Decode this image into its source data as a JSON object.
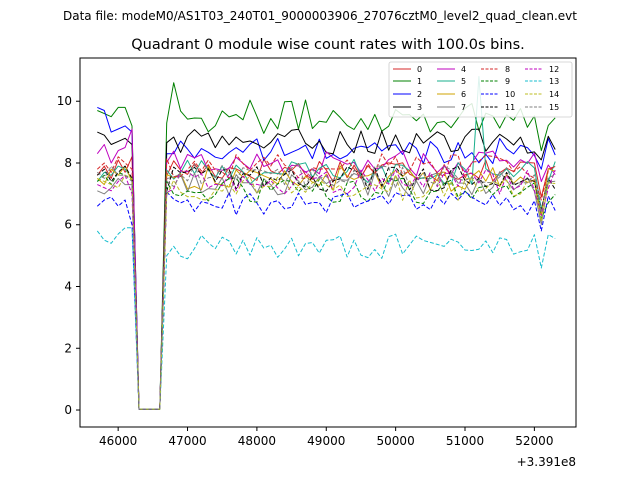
{
  "chart_data": {
    "type": "line",
    "suptitle": "Data file: modeM0/AS1T03_240T01_9000003906_27076cztM0_level2_quad_clean.evt",
    "title": "Quadrant 0 module wise count rates with 100.0s bins.",
    "xlabel": "",
    "ylabel": "",
    "x_offset_label": "+3.391e8",
    "xlim": [
      45450,
      52600
    ],
    "ylim": [
      -0.55,
      11.4
    ],
    "xticks": [
      46000,
      47000,
      48000,
      49000,
      50000,
      51000,
      52000
    ],
    "xtick_labels": [
      "46000",
      "47000",
      "48000",
      "49000",
      "50000",
      "51000",
      "52000"
    ],
    "yticks": [
      0,
      2,
      4,
      6,
      8,
      10
    ],
    "ytick_labels": [
      "0",
      "2",
      "4",
      "6",
      "8",
      "10"
    ],
    "grid": false,
    "legend_position": "top-right",
    "x_start": 45700,
    "x_step": 100,
    "n_points": 67,
    "gap": {
      "start_index": 6,
      "end_index": 9,
      "value": 0.03
    },
    "dip": {
      "index": 64
    },
    "series": [
      {
        "name": "0",
        "color": "#d62728",
        "dashed": false,
        "level": 7.8,
        "pre": [
          7.6,
          7.9,
          7.5,
          8.1,
          7.7,
          8.2
        ],
        "dip": 6.9
      },
      {
        "name": "1",
        "color": "#008000",
        "dashed": false,
        "level": 9.5,
        "pre": [
          9.7,
          9.6,
          9.5,
          9.8,
          9.8,
          9.2
        ],
        "dip": 8.4
      },
      {
        "name": "2",
        "color": "#0000ff",
        "dashed": false,
        "level": 8.4,
        "pre": [
          9.8,
          9.7,
          9.0,
          9.1,
          9.2,
          9.0
        ],
        "dip": 7.8
      },
      {
        "name": "3",
        "color": "#000000",
        "dashed": false,
        "level": 8.7,
        "pre": [
          9.0,
          8.9,
          8.6,
          8.7,
          8.8,
          8.6
        ],
        "dip": 8.1
      },
      {
        "name": "4",
        "color": "#bf00bf",
        "dashed": false,
        "level": 8.0,
        "pre": [
          8.3,
          8.6,
          8.0,
          8.4,
          8.5,
          9.1
        ],
        "dip": 7.4
      },
      {
        "name": "5",
        "color": "#1aaf8c",
        "dashed": false,
        "level": 7.7,
        "pre": [
          7.4,
          7.7,
          7.6,
          7.9,
          7.8,
          7.5
        ],
        "dip": 6.5
      },
      {
        "name": "6",
        "color": "#cfa300",
        "dashed": false,
        "level": 7.5,
        "pre": [
          7.5,
          7.3,
          7.8,
          7.6,
          7.9,
          7.4
        ],
        "dip": 6.3
      },
      {
        "name": "7",
        "color": "#808080",
        "dashed": false,
        "level": 7.3,
        "pre": [
          7.1,
          7.0,
          7.2,
          7.5,
          7.3,
          7.3
        ],
        "dip": 6.0
      },
      {
        "name": "8",
        "color": "#d62728",
        "dashed": true,
        "level": 7.9,
        "pre": [
          7.8,
          8.0,
          7.7,
          8.2,
          8.0,
          7.8
        ],
        "dip": 6.8
      },
      {
        "name": "9",
        "color": "#008000",
        "dashed": true,
        "level": 7.1,
        "pre": [
          7.4,
          7.6,
          7.3,
          7.7,
          7.6,
          7.5
        ],
        "dip": 6.2
      },
      {
        "name": "10",
        "color": "#0000ff",
        "dashed": true,
        "level": 6.7,
        "pre": [
          6.6,
          6.8,
          6.9,
          6.6,
          6.8,
          6.0
        ],
        "dip": 5.8
      },
      {
        "name": "11",
        "color": "#000000",
        "dashed": true,
        "level": 7.5,
        "pre": [
          7.6,
          7.8,
          7.4,
          7.7,
          7.9,
          7.5
        ],
        "dip": 6.5
      },
      {
        "name": "12",
        "color": "#bf00bf",
        "dashed": true,
        "level": 7.4,
        "pre": [
          7.3,
          7.2,
          7.1,
          7.4,
          7.6,
          7.0
        ],
        "dip": 6.3
      },
      {
        "name": "13",
        "color": "#17becf",
        "dashed": true,
        "level": 5.3,
        "pre": [
          5.8,
          5.5,
          5.4,
          5.7,
          5.9,
          5.9
        ],
        "dip": 4.6
      },
      {
        "name": "14",
        "color": "#bcbd22",
        "dashed": true,
        "level": 7.2,
        "pre": [
          7.5,
          7.4,
          7.3,
          7.2,
          7.6,
          7.5
        ],
        "dip": 6.1
      },
      {
        "name": "15",
        "color": "#808080",
        "dashed": true,
        "level": 7.6,
        "pre": [
          7.7,
          7.5,
          7.9,
          7.6,
          7.6,
          7.4
        ],
        "dip": 6.4
      }
    ]
  }
}
